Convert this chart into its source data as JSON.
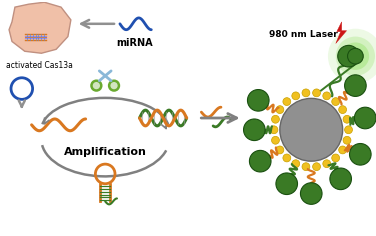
{
  "bg_color": "#ffffff",
  "fig_width": 3.76,
  "fig_height": 2.36,
  "dpi": 100,
  "label_cas13a": "activated Cas13a",
  "label_mirna": "miRNA",
  "label_amp": "Amplification",
  "label_laser": "980 nm Laser",
  "colors": {
    "orange": "#D97820",
    "green_dark": "#3A7A25",
    "green_mid": "#6AAA30",
    "blue": "#2050B0",
    "gray": "#808080",
    "gray_arrow": "#909090",
    "yellow": "#F0C020",
    "pink_bg": "#F0C0A8",
    "pink_edge": "#C09080",
    "red": "#CC1515",
    "scissors_body": "#8AB8D8",
    "scissors_handle": "#6AAA30",
    "gray_circle": "#909090",
    "light_green_glow": "#88DD55"
  }
}
